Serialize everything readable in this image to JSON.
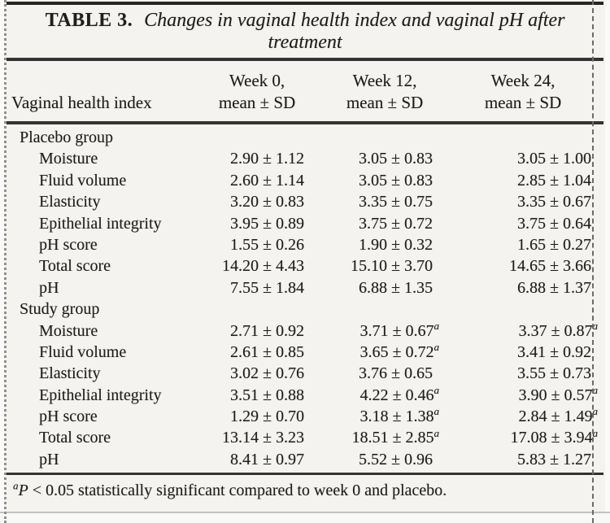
{
  "page": {
    "title": {
      "label": "TABLE 3.",
      "line1": "Changes in vaginal health index and vaginal pH after",
      "line2": "treatment"
    }
  },
  "table": {
    "header": {
      "col1": "Vaginal health index",
      "col2": {
        "line1": "Week 0,",
        "line2": "mean ± SD"
      },
      "col3": {
        "line1": "Week 12,",
        "line2": "mean ± SD"
      },
      "col4": {
        "line1": "Week 24,",
        "line2": "mean ± SD"
      }
    },
    "groups": [
      {
        "label": "Placebo group",
        "rows": [
          {
            "label": "Moisture",
            "week0": "2.90 ± 1.12",
            "week12": "3.05 ± 0.83",
            "week24": "3.05 ± 1.00"
          },
          {
            "label": "Fluid volume",
            "week0": "2.60 ± 1.14",
            "week12": "3.05 ± 0.83",
            "week24": "2.85 ± 1.04"
          },
          {
            "label": "Elasticity",
            "week0": "3.20 ± 0.83",
            "week12": "3.35 ± 0.75",
            "week24": "3.35 ± 0.67"
          },
          {
            "label": "Epithelial integrity",
            "week0": "3.95 ± 0.89",
            "week12": "3.75 ± 0.72",
            "week24": "3.75 ± 0.64"
          },
          {
            "label": "pH score",
            "week0": "1.55 ± 0.26",
            "week12": "1.90 ± 0.32",
            "week24": "1.65 ± 0.27"
          },
          {
            "label": "Total score",
            "week0": "14.20 ± 4.43",
            "week12": "15.10 ± 3.70",
            "week24": "14.65 ± 3.66"
          },
          {
            "label": "pH",
            "week0": "7.55 ± 1.84",
            "week12": "6.88 ± 1.35",
            "week24": "6.88 ± 1.37"
          }
        ]
      },
      {
        "label": "Study group",
        "rows": [
          {
            "label": "Moisture",
            "week0": "2.71 ± 0.92",
            "week12": "3.71 ± 0.67",
            "week12_sup": "a",
            "week24": "3.37 ± 0.87",
            "week24_sup": "a"
          },
          {
            "label": "Fluid volume",
            "week0": "2.61 ± 0.85",
            "week12": "3.65 ± 0.72",
            "week12_sup": "a",
            "week24": "3.41 ± 0.92"
          },
          {
            "label": "Elasticity",
            "week0": "3.02 ± 0.76",
            "week12": "3.76 ± 0.65",
            "week24": "3.55 ± 0.73"
          },
          {
            "label": "Epithelial integrity",
            "week0": "3.51 ± 0.88",
            "week12": "4.22 ± 0.46",
            "week12_sup": "a",
            "week24": "3.90 ± 0.57",
            "week24_sup": "a"
          },
          {
            "label": "pH score",
            "week0": "1.29 ± 0.70",
            "week12": "3.18 ± 1.38",
            "week12_sup": "a",
            "week24": "2.84 ± 1.49",
            "week24_sup": "a"
          },
          {
            "label": "Total score",
            "week0": "13.14 ± 3.23",
            "week12": "18.51 ± 2.85",
            "week12_sup": "a",
            "week24": "17.08 ± 3.94",
            "week24_sup": "a"
          },
          {
            "label": "pH",
            "week0": "8.41 ± 0.97",
            "week12": "5.52 ± 0.96",
            "week24": "5.83 ± 1.27"
          }
        ]
      }
    ],
    "footnote": {
      "sup": "a",
      "p": "P",
      "text": " < 0.05 statistically significant compared to week 0 and placebo."
    }
  }
}
